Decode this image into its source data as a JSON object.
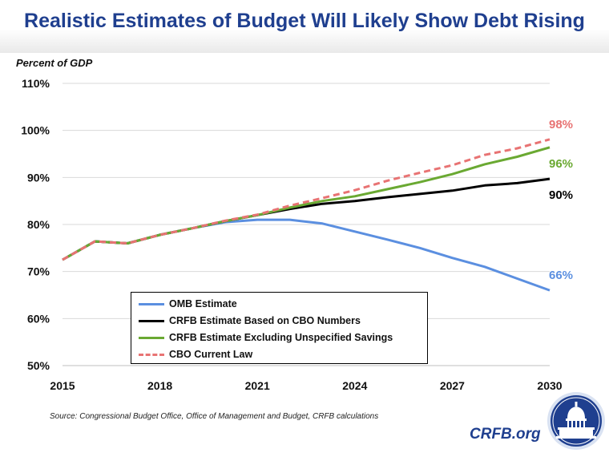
{
  "title": "Realistic Estimates of Budget Will Likely Show Debt Rising",
  "source": "Source: Congressional Budget Office, Office of Management and Budget, CRFB calculations",
  "brand": "CRFB.org",
  "colors": {
    "title": "#1f3f8f",
    "omb": "#5b8fe0",
    "crfb_cbo": "#000000",
    "crfb_excl": "#6aa932",
    "cbo": "#e87373"
  },
  "chart_data": {
    "type": "line",
    "ylabel": "Percent of GDP",
    "x": [
      2015,
      2016,
      2017,
      2018,
      2019,
      2020,
      2021,
      2022,
      2023,
      2024,
      2025,
      2026,
      2027,
      2028,
      2029,
      2030
    ],
    "xticks": [
      "2015",
      "2018",
      "2021",
      "2024",
      "2027",
      "2030"
    ],
    "yticks": [
      "50%",
      "60%",
      "70%",
      "80%",
      "90%",
      "100%",
      "110%"
    ],
    "ylim": [
      50,
      110
    ],
    "grid": "horizontal",
    "legend_position": "bottom-center",
    "series": [
      {
        "name": "OMB Estimate",
        "color": "#5b8fe0",
        "dash": "solid",
        "values": [
          72.5,
          76.4,
          76.0,
          77.8,
          79.2,
          80.5,
          81.0,
          81.0,
          80.2,
          78.5,
          76.8,
          75.0,
          72.9,
          71.0,
          68.5,
          66.0
        ],
        "end_label": "66%"
      },
      {
        "name": "CRFB Estimate Based on CBO Numbers",
        "color": "#000000",
        "dash": "solid",
        "values": [
          72.5,
          76.4,
          76.0,
          77.8,
          79.2,
          80.7,
          82.0,
          83.3,
          84.4,
          85.0,
          85.8,
          86.5,
          87.2,
          88.3,
          88.8,
          89.7
        ],
        "end_label": "90%"
      },
      {
        "name": "CRFB Estimate Excluding Unspecified Savings",
        "color": "#6aa932",
        "dash": "solid",
        "values": [
          72.5,
          76.4,
          76.0,
          77.8,
          79.2,
          80.7,
          82.0,
          83.6,
          85.0,
          86.0,
          87.5,
          89.0,
          90.7,
          92.8,
          94.4,
          96.4
        ],
        "end_label": "96%"
      },
      {
        "name": "CBO Current Law",
        "color": "#e87373",
        "dash": "dashed",
        "values": [
          72.5,
          76.4,
          76.0,
          77.8,
          79.2,
          80.8,
          82.1,
          84.0,
          85.6,
          87.3,
          89.3,
          91.0,
          92.6,
          94.8,
          96.2,
          98.1
        ],
        "end_label": "98%"
      }
    ]
  }
}
